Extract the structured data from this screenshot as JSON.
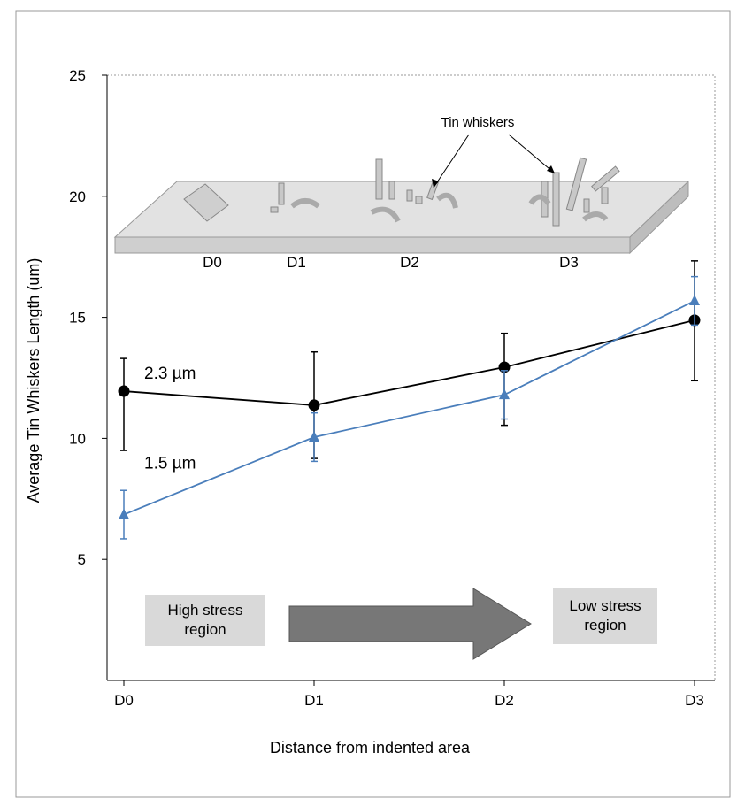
{
  "chart_data": {
    "type": "line",
    "ylabel": "Average Tin Whiskers Length (um)",
    "xlabel": "Distance from indented area",
    "categories": [
      "D0",
      "D1",
      "D2",
      "D3"
    ],
    "ylim": [
      0,
      25
    ],
    "yticks": [
      5,
      10,
      15,
      20,
      25
    ],
    "series": [
      {
        "name": "2.3 µm",
        "color": "#000000",
        "marker": "circle",
        "values": [
          11.95,
          11.37,
          12.94,
          14.88
        ],
        "error_plus": [
          1.35,
          2.2,
          1.4,
          2.45
        ],
        "error_minus": [
          2.45,
          2.2,
          2.4,
          2.5
        ]
      },
      {
        "name": "1.5 µm",
        "color": "#4a7ebb",
        "marker": "triangle",
        "values": [
          6.85,
          10.05,
          11.8,
          15.68
        ],
        "error_plus": [
          1.0,
          1.0,
          1.0,
          1.0
        ],
        "error_minus": [
          1.0,
          1.0,
          1.0,
          1.0
        ]
      }
    ],
    "annotation": "Tin whiskers",
    "illustration_labels": [
      "D0",
      "D1",
      "D2",
      "D3"
    ],
    "region_labels": [
      "High stress region",
      "Low stress region"
    ]
  }
}
